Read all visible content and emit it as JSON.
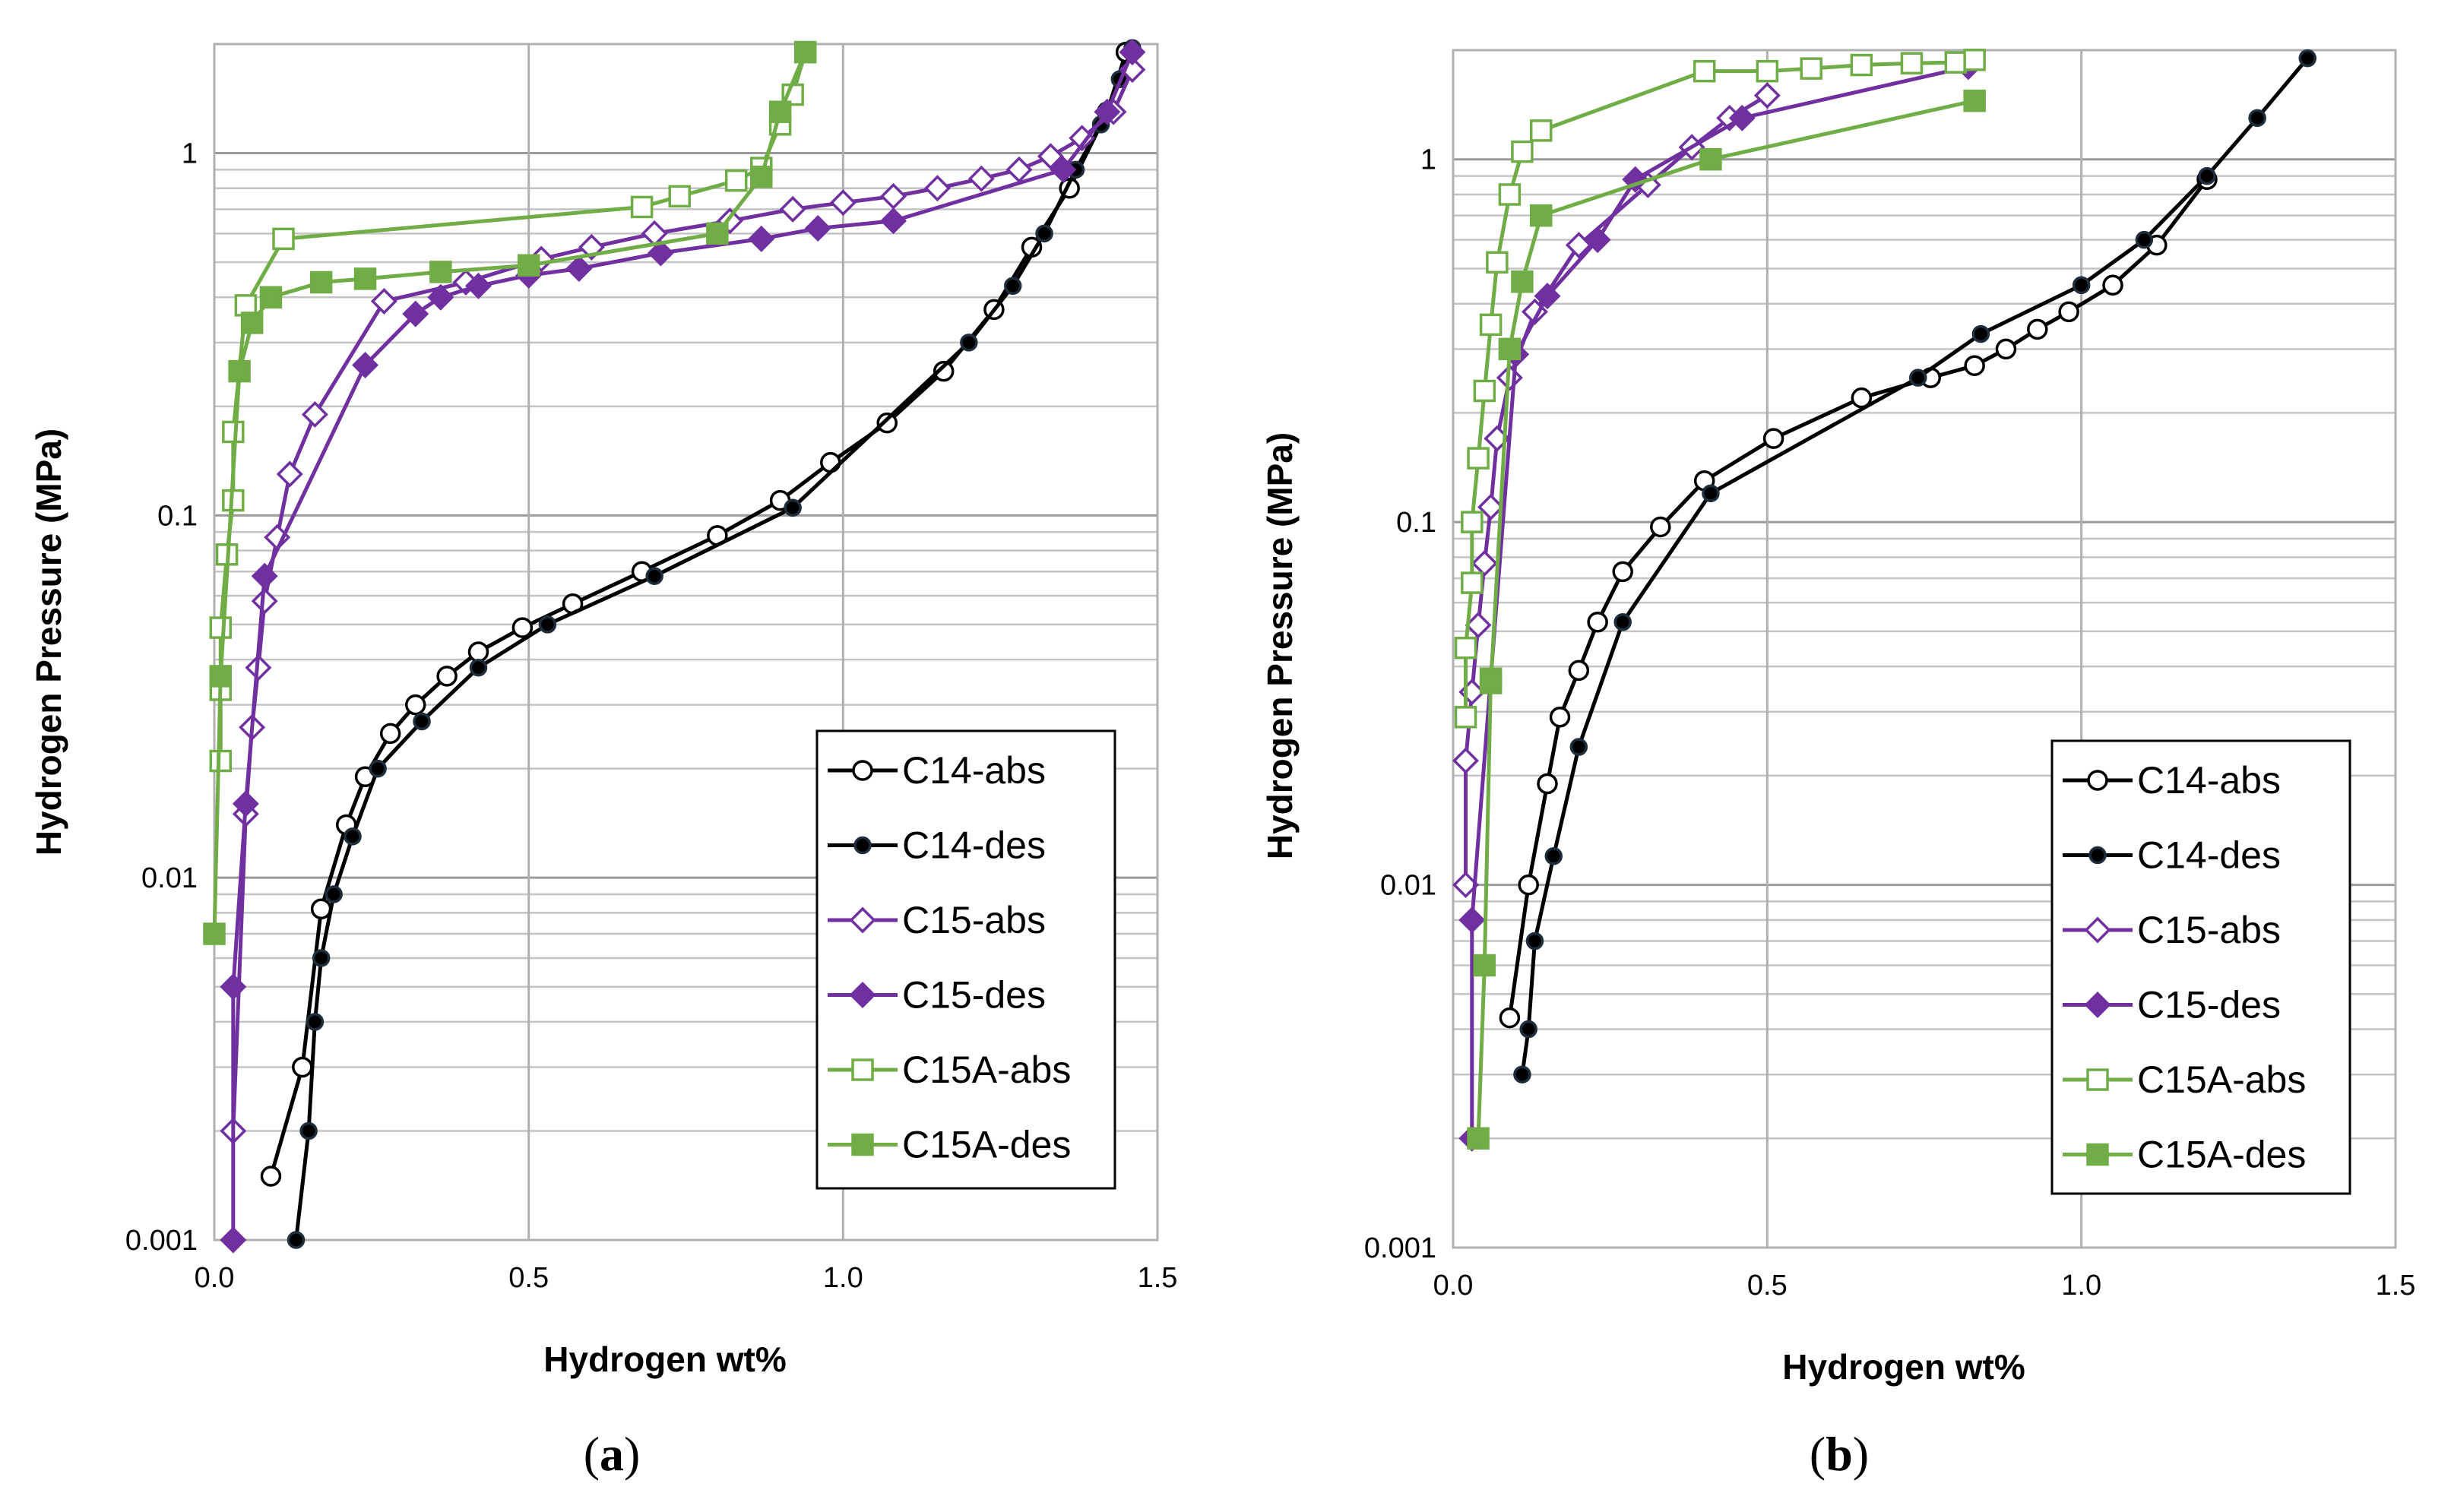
{
  "chart_data": [
    {
      "type": "scatter",
      "panel_label": "a",
      "xlabel": "Hydrogen wt%",
      "ylabel": "Hydrogen Pressure  (MPa)",
      "xlim": [
        0,
        1.5
      ],
      "ylim": [
        0.001,
        2
      ],
      "y_scale": "log",
      "x_ticks": [
        "0.0",
        "0.5",
        "1.0",
        "1.5"
      ],
      "y_ticks": [
        "0.001",
        "0.01",
        "0.1",
        "1"
      ],
      "legend_position": "bottom-right",
      "series": [
        {
          "name": "C14-abs",
          "color": "#000000",
          "marker": "circle-open",
          "x": [
            0.09,
            0.14,
            0.17,
            0.21,
            0.24,
            0.28,
            0.32,
            0.37,
            0.42,
            0.49,
            0.57,
            0.68,
            0.8,
            0.9,
            0.98,
            1.07,
            1.16,
            1.24,
            1.3,
            1.36,
            1.42,
            1.45
          ],
          "y": [
            0.0015,
            0.003,
            0.0082,
            0.014,
            0.019,
            0.025,
            0.03,
            0.036,
            0.042,
            0.049,
            0.057,
            0.07,
            0.088,
            0.11,
            0.14,
            0.18,
            0.25,
            0.37,
            0.55,
            0.8,
            1.3,
            1.9
          ]
        },
        {
          "name": "C14-des",
          "color": "#000000",
          "marker": "circle-filled",
          "x": [
            0.13,
            0.15,
            0.16,
            0.17,
            0.19,
            0.22,
            0.26,
            0.33,
            0.42,
            0.53,
            0.7,
            0.92,
            1.2,
            1.27,
            1.32,
            1.37,
            1.41,
            1.44,
            1.46
          ],
          "y": [
            0.001,
            0.002,
            0.004,
            0.006,
            0.009,
            0.013,
            0.02,
            0.027,
            0.038,
            0.05,
            0.068,
            0.105,
            0.3,
            0.43,
            0.6,
            0.9,
            1.2,
            1.6,
            1.95
          ]
        },
        {
          "name": "C15-abs",
          "color": "#7030a0",
          "marker": "diamond-open",
          "x": [
            0.03,
            0.05,
            0.06,
            0.07,
            0.08,
            0.1,
            0.12,
            0.16,
            0.27,
            0.4,
            0.52,
            0.6,
            0.7,
            0.82,
            0.92,
            1.0,
            1.08,
            1.15,
            1.22,
            1.28,
            1.33,
            1.38,
            1.43,
            1.46
          ],
          "y": [
            0.002,
            0.015,
            0.026,
            0.038,
            0.058,
            0.087,
            0.13,
            0.19,
            0.39,
            0.44,
            0.51,
            0.55,
            0.6,
            0.65,
            0.7,
            0.73,
            0.76,
            0.8,
            0.85,
            0.9,
            0.98,
            1.1,
            1.3,
            1.7
          ]
        },
        {
          "name": "C15-des",
          "color": "#7030a0",
          "marker": "diamond-filled",
          "x": [
            0.03,
            0.03,
            0.05,
            0.08,
            0.24,
            0.32,
            0.36,
            0.42,
            0.5,
            0.58,
            0.71,
            0.87,
            0.96,
            1.08,
            1.35,
            1.42,
            1.46
          ],
          "y": [
            0.001,
            0.005,
            0.016,
            0.068,
            0.26,
            0.36,
            0.4,
            0.43,
            0.46,
            0.48,
            0.53,
            0.58,
            0.62,
            0.65,
            0.9,
            1.3,
            1.9
          ]
        },
        {
          "name": "C15A-abs",
          "color": "#70ad47",
          "marker": "square-open",
          "x": [
            0.01,
            0.01,
            0.01,
            0.02,
            0.03,
            0.03,
            0.05,
            0.11,
            0.68,
            0.74,
            0.83,
            0.87,
            0.9,
            0.92,
            0.94
          ],
          "y": [
            0.021,
            0.033,
            0.049,
            0.078,
            0.11,
            0.17,
            0.38,
            0.58,
            0.71,
            0.76,
            0.84,
            0.91,
            1.2,
            1.45,
            1.9
          ]
        },
        {
          "name": "C15A-des",
          "color": "#70ad47",
          "marker": "square-filled",
          "x": [
            0.0,
            0.01,
            0.04,
            0.06,
            0.09,
            0.17,
            0.24,
            0.36,
            0.5,
            0.8,
            0.87,
            0.9,
            0.94
          ],
          "y": [
            0.007,
            0.036,
            0.25,
            0.34,
            0.4,
            0.44,
            0.45,
            0.47,
            0.49,
            0.6,
            0.86,
            1.3,
            1.9
          ]
        }
      ]
    },
    {
      "type": "scatter",
      "panel_label": "b",
      "xlabel": "Hydrogen wt%",
      "ylabel": "Hydrogen Pressure  (MPa)",
      "xlim": [
        0,
        1.5
      ],
      "ylim": [
        0.001,
        2
      ],
      "y_scale": "log",
      "x_ticks": [
        "0.0",
        "0.5",
        "1.0",
        "1.5"
      ],
      "y_ticks": [
        "0.001",
        "0.01",
        "0.1",
        "1"
      ],
      "legend_position": "bottom-right",
      "series": [
        {
          "name": "C14-abs",
          "color": "#000000",
          "marker": "circle-open",
          "x": [
            0.09,
            0.12,
            0.15,
            0.17,
            0.2,
            0.23,
            0.27,
            0.33,
            0.4,
            0.51,
            0.65,
            0.76,
            0.83,
            0.88,
            0.93,
            0.98,
            1.05,
            1.12,
            1.2
          ],
          "y": [
            0.0043,
            0.01,
            0.019,
            0.029,
            0.039,
            0.053,
            0.073,
            0.097,
            0.13,
            0.17,
            0.22,
            0.25,
            0.27,
            0.3,
            0.34,
            0.38,
            0.45,
            0.58,
            0.88
          ]
        },
        {
          "name": "C14-des",
          "color": "#000000",
          "marker": "circle-filled",
          "x": [
            0.11,
            0.12,
            0.13,
            0.16,
            0.2,
            0.27,
            0.41,
            0.74,
            0.84,
            1.0,
            1.1,
            1.2,
            1.28,
            1.36
          ],
          "y": [
            0.003,
            0.004,
            0.007,
            0.012,
            0.024,
            0.053,
            0.12,
            0.25,
            0.33,
            0.45,
            0.6,
            0.9,
            1.3,
            1.9
          ]
        },
        {
          "name": "C15-abs",
          "color": "#7030a0",
          "marker": "diamond-open",
          "x": [
            0.02,
            0.02,
            0.03,
            0.04,
            0.05,
            0.06,
            0.07,
            0.09,
            0.13,
            0.2,
            0.31,
            0.38,
            0.44,
            0.5
          ],
          "y": [
            0.01,
            0.022,
            0.034,
            0.052,
            0.077,
            0.11,
            0.17,
            0.25,
            0.38,
            0.58,
            0.85,
            1.08,
            1.3,
            1.5
          ]
        },
        {
          "name": "C15-des",
          "color": "#7030a0",
          "marker": "diamond-filled",
          "x": [
            0.03,
            0.03,
            0.1,
            0.15,
            0.23,
            0.29,
            0.46,
            0.82
          ],
          "y": [
            0.002,
            0.008,
            0.29,
            0.42,
            0.6,
            0.88,
            1.3,
            1.8
          ]
        },
        {
          "name": "C15A-abs",
          "color": "#70ad47",
          "marker": "square-open",
          "x": [
            0.02,
            0.02,
            0.03,
            0.03,
            0.04,
            0.05,
            0.06,
            0.07,
            0.09,
            0.11,
            0.14,
            0.4,
            0.5,
            0.57,
            0.65,
            0.73,
            0.8,
            0.83
          ],
          "y": [
            0.029,
            0.045,
            0.068,
            0.1,
            0.15,
            0.23,
            0.35,
            0.52,
            0.8,
            1.05,
            1.2,
            1.75,
            1.75,
            1.78,
            1.82,
            1.84,
            1.85,
            1.88
          ]
        },
        {
          "name": "C15A-des",
          "color": "#70ad47",
          "marker": "square-filled",
          "x": [
            0.04,
            0.05,
            0.06,
            0.06,
            0.09,
            0.11,
            0.14,
            0.41,
            0.83
          ],
          "y": [
            0.002,
            0.006,
            0.037,
            0.036,
            0.3,
            0.46,
            0.7,
            1.0,
            1.45
          ]
        }
      ]
    }
  ]
}
